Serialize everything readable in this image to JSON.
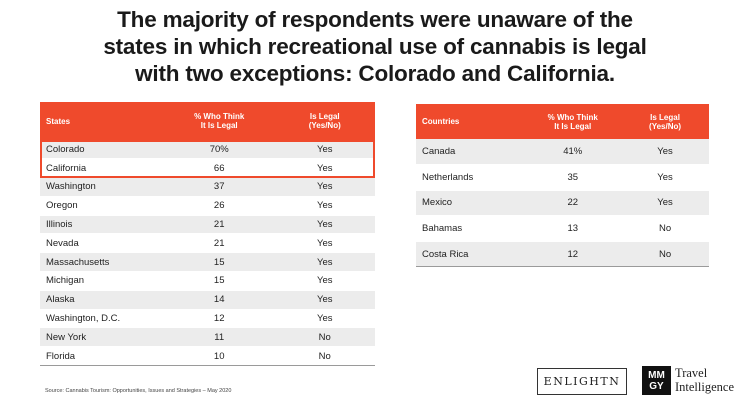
{
  "title": {
    "lines": [
      "The majority of respondents were unaware of the",
      "states in which recreational use of cannabis is legal",
      "with two exceptions: Colorado and California."
    ]
  },
  "chart_data": [
    {
      "type": "table",
      "columns": [
        "States",
        "% Who Think It Is Legal",
        "Is Legal (Yes/No)"
      ],
      "header_lines": [
        [
          "States"
        ],
        [
          "% Who Think",
          "It Is Legal"
        ],
        [
          "Is Legal",
          "(Yes/No)"
        ]
      ],
      "highlighted_rows": [
        0,
        1
      ],
      "rows": [
        [
          "Colorado",
          "70%",
          "Yes"
        ],
        [
          "California",
          "66",
          "Yes"
        ],
        [
          "Washington",
          "37",
          "Yes"
        ],
        [
          "Oregon",
          "26",
          "Yes"
        ],
        [
          "Illinois",
          "21",
          "Yes"
        ],
        [
          "Nevada",
          "21",
          "Yes"
        ],
        [
          "Massachusetts",
          "15",
          "Yes"
        ],
        [
          "Michigan",
          "15",
          "Yes"
        ],
        [
          "Alaska",
          "14",
          "Yes"
        ],
        [
          "Washington, D.C.",
          "12",
          "Yes"
        ],
        [
          "New York",
          "11",
          "No"
        ],
        [
          "Florida",
          "10",
          "No"
        ]
      ]
    },
    {
      "type": "table",
      "columns": [
        "Countries",
        "% Who Think It Is Legal",
        "Is Legal (Yes/No)"
      ],
      "header_lines": [
        [
          "Countries"
        ],
        [
          "% Who Think",
          "It Is Legal"
        ],
        [
          "Is Legal",
          "(Yes/No)"
        ]
      ],
      "rows": [
        [
          "Canada",
          "41%",
          "Yes"
        ],
        [
          "Netherlands",
          "35",
          "Yes"
        ],
        [
          "Mexico",
          "22",
          "Yes"
        ],
        [
          "Bahamas",
          "13",
          "No"
        ],
        [
          "Costa Rica",
          "12",
          "No"
        ]
      ]
    }
  ],
  "source": "Source: Cannabis Tourism: Opportunities, Issues and Strategies – May 2020",
  "logos": {
    "enlightn": "ENLIGHTN",
    "mmgy_mark": [
      "MM",
      "GY"
    ],
    "mmgy_text": [
      "Travel",
      "Intelligence"
    ]
  },
  "colors": {
    "header": "#ef4a2c",
    "highlight_border": "#ef4a2c",
    "row_shade": "#ececec"
  }
}
